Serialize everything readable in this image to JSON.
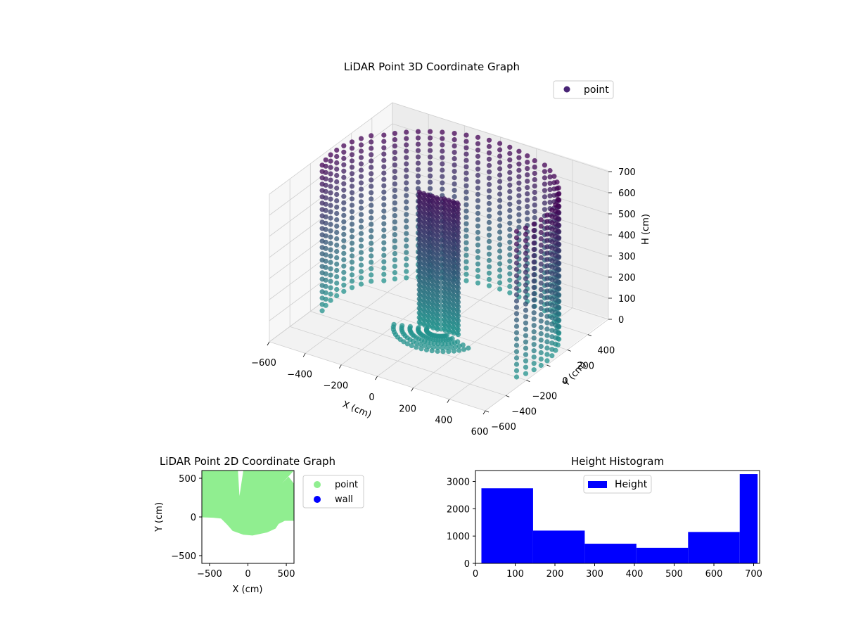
{
  "colors": {
    "background": "#ffffff",
    "pane": "#f2f2f2",
    "pane_side": "#f7f7f7",
    "grid": "#cfcfcf",
    "points_low": "#21918c",
    "points_high": "#440154",
    "legend_point_3d": "#482475",
    "point_2d": "#90ee90",
    "wall_2d": "#0000ff",
    "histogram": "#0000ff"
  },
  "chart_data": [
    {
      "type": "scatter",
      "subtype": "3d",
      "title": "LiDAR Point 3D Coordinate Graph",
      "xlabel": "X (cm)",
      "ylabel": "Y (cm)",
      "zlabel": "H (cm)",
      "xlim": [
        -600,
        600
      ],
      "ylim": [
        -600,
        600
      ],
      "zlim": [
        0,
        700
      ],
      "x_ticks": [
        "−600",
        "−400",
        "−200",
        "0",
        "200",
        "400",
        "600"
      ],
      "y_ticks": [
        "−600",
        "−400",
        "−200",
        "0",
        "200",
        "400"
      ],
      "z_ticks": [
        "0",
        "100",
        "200",
        "300",
        "400",
        "500",
        "600",
        "700"
      ],
      "z_tick_labels_shown": [
        "0",
        "100",
        "200",
        "300",
        "400",
        "500",
        "600",
        "700"
      ],
      "grid": true,
      "legend": [
        "point"
      ],
      "legend_position": "top-right",
      "colormap": "viridis (by height)"
    },
    {
      "type": "scatter",
      "title": "LiDAR Point 2D Coordinate Graph",
      "xlabel": "X (cm)",
      "ylabel": "Y (cm)",
      "xlim": [
        -600,
        600
      ],
      "ylim": [
        -600,
        600
      ],
      "x_ticks": [
        "−500",
        "0",
        "500"
      ],
      "y_ticks": [
        "−500",
        "0",
        "500"
      ],
      "legend": [
        "point",
        "wall"
      ],
      "legend_position": "outside-right",
      "point_region_outline": [
        [
          -600,
          600
        ],
        [
          -130,
          600
        ],
        [
          -110,
          270
        ],
        [
          -60,
          600
        ],
        [
          380,
          600
        ],
        [
          390,
          600
        ],
        [
          600,
          600
        ],
        [
          600,
          -50
        ],
        [
          480,
          -50
        ],
        [
          400,
          -90
        ],
        [
          360,
          -150
        ],
        [
          250,
          -200
        ],
        [
          60,
          -240
        ],
        [
          -60,
          -230
        ],
        [
          -200,
          -180
        ],
        [
          -270,
          -100
        ],
        [
          -350,
          -20
        ],
        [
          -450,
          -10
        ],
        [
          -600,
          -5
        ]
      ],
      "point_region_gap": [
        [
          440,
          430
        ],
        [
          600,
          600
        ],
        [
          600,
          430
        ],
        [
          530,
          520
        ]
      ]
    },
    {
      "type": "bar",
      "subtype": "histogram",
      "title": "Height Histogram",
      "xlim": [
        0,
        715
      ],
      "ylim": [
        0,
        3400
      ],
      "x_ticks": [
        "0",
        "100",
        "200",
        "300",
        "400",
        "500",
        "600",
        "700"
      ],
      "y_ticks": [
        "0",
        "1000",
        "2000",
        "3000"
      ],
      "legend": [
        "Height"
      ],
      "legend_position": "upper center",
      "bins": [
        {
          "x0": 15,
          "x1": 145,
          "value": 2750
        },
        {
          "x0": 145,
          "x1": 275,
          "value": 1200
        },
        {
          "x0": 275,
          "x1": 405,
          "value": 720
        },
        {
          "x0": 405,
          "x1": 535,
          "value": 570
        },
        {
          "x0": 535,
          "x1": 665,
          "value": 1150
        },
        {
          "x0": 665,
          "x1": 710,
          "value": 3270
        }
      ]
    }
  ]
}
